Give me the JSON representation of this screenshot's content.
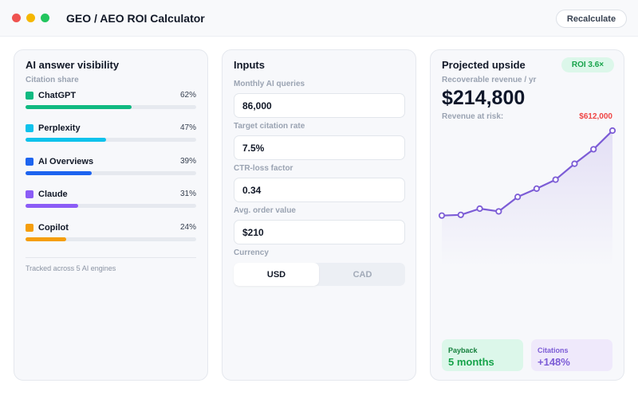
{
  "window": {
    "title": "GEO / AEO ROI Calculator"
  },
  "toolbar": {
    "recalculate_label": "Recalculate"
  },
  "visibility": {
    "title": "AI answer visibility",
    "subtitle": "Citation share",
    "engines": [
      {
        "name": "ChatGPT",
        "pct_label": "62%",
        "share": 0.62,
        "color": "#10b981"
      },
      {
        "name": "Perplexity",
        "pct_label": "47%",
        "share": 0.47,
        "color": "#0ec2ec"
      },
      {
        "name": "AI Overviews",
        "pct_label": "39%",
        "share": 0.39,
        "color": "#1d64f0"
      },
      {
        "name": "Claude",
        "pct_label": "31%",
        "share": 0.31,
        "color": "#8b5cf6"
      },
      {
        "name": "Copilot",
        "pct_label": "24%",
        "share": 0.24,
        "color": "#f59e0b"
      }
    ],
    "footer": "Tracked across 5 AI engines"
  },
  "inputs": {
    "title": "Inputs",
    "monthly_queries": {
      "label": "Monthly AI queries",
      "value": "86,000"
    },
    "citation_rate": {
      "label": "Target citation rate",
      "value": "7.5%"
    },
    "ctr_loss": {
      "label": "CTR-loss factor",
      "value": "0.34"
    },
    "order_value": {
      "label": "Avg. order value",
      "value": "$210"
    },
    "currency": {
      "label": "Currency",
      "options": [
        "USD",
        "CAD"
      ],
      "selected": "USD"
    }
  },
  "upside": {
    "title": "Projected upside",
    "roi_badge": "ROI 3.6×",
    "revenue_label": "Recoverable revenue / yr",
    "revenue_value": "$214,800",
    "risk_label": "Revenue at risk:",
    "risk_value": "$612,000",
    "payback": {
      "label": "Payback",
      "value": "5 months"
    },
    "citations": {
      "label": "Citations",
      "value": "+148%"
    }
  },
  "chart_data": {
    "type": "line",
    "x": [
      1,
      2,
      3,
      4,
      5,
      6,
      7,
      8,
      9,
      10
    ],
    "series": [
      {
        "values": [
          5,
          6,
          15,
          11,
          32,
          44,
          57,
          80,
          101,
          128
        ],
        "color": "#7c5cd6"
      }
    ],
    "ylim": [
      0,
      128
    ],
    "grid": false,
    "legend": "none"
  }
}
